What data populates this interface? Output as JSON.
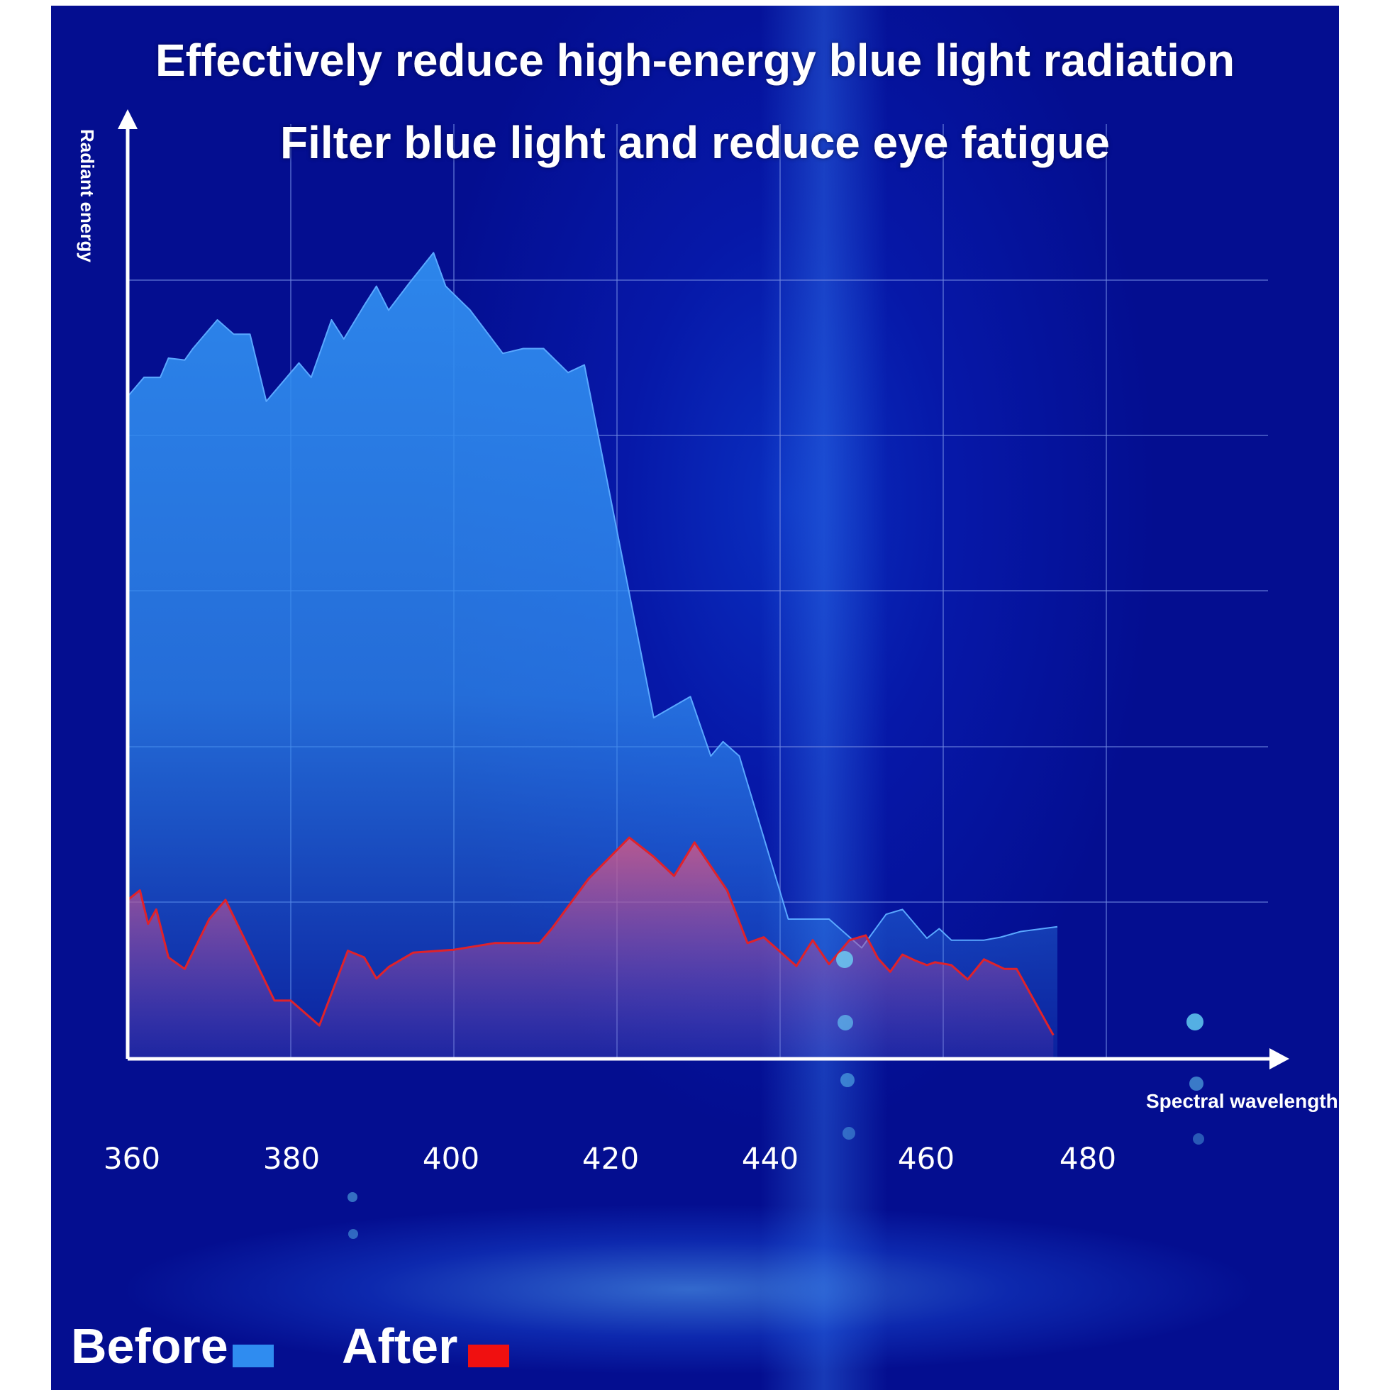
{
  "title": "Effectively reduce high-energy blue light radiation",
  "subtitle": "Filter blue light and reduce eye fatigue",
  "colors": {
    "before": "#2f8cf0",
    "after": "#f01010",
    "after_line": "#e0222a",
    "axis": "#ffffff",
    "grid": "#6f86e0"
  },
  "chart_data": {
    "type": "area",
    "title": "Effectively reduce high-energy blue light radiation",
    "subtitle": "Filter blue light and reduce eye fatigue",
    "xlabel": "Spectral wavelength",
    "ylabel": "Radiant energy",
    "x_ticks": [
      "360",
      "380",
      "400",
      "420",
      "440",
      "460",
      "480"
    ],
    "xlim": [
      360,
      492
    ],
    "ylim": [
      0,
      100
    ],
    "grid": true,
    "legend": "bottom-left",
    "series": [
      {
        "name": "Before",
        "color": "#2f8cf0",
        "points": [
          [
            360.0,
            69
          ],
          [
            362.0,
            71
          ],
          [
            364.0,
            71
          ],
          [
            365.0,
            73
          ],
          [
            367.0,
            72.8
          ],
          [
            368.0,
            74
          ],
          [
            371.0,
            77
          ],
          [
            373.0,
            75.5
          ],
          [
            375.0,
            75.5
          ],
          [
            377.0,
            68.5
          ],
          [
            380.0,
            71.5
          ],
          [
            381.0,
            72.5
          ],
          [
            382.5,
            71
          ],
          [
            385.0,
            77
          ],
          [
            386.5,
            75
          ],
          [
            389.0,
            78.5
          ],
          [
            390.5,
            80.5
          ],
          [
            392.0,
            78
          ],
          [
            394.5,
            80.8
          ],
          [
            397.5,
            84
          ],
          [
            399.0,
            80.5
          ],
          [
            402.0,
            78
          ],
          [
            406.0,
            73.5
          ],
          [
            408.5,
            74
          ],
          [
            411.0,
            74
          ],
          [
            414.0,
            71.5
          ],
          [
            416.0,
            72.3
          ],
          [
            424.5,
            35.5
          ],
          [
            429.0,
            37.7
          ],
          [
            431.5,
            31.5
          ],
          [
            433.0,
            33
          ],
          [
            435.0,
            31.5
          ],
          [
            441.0,
            14.5
          ],
          [
            444.0,
            14.5
          ],
          [
            446.0,
            14.5
          ],
          [
            450.0,
            11.5
          ],
          [
            453.0,
            15
          ],
          [
            455.0,
            15.5
          ],
          [
            458.0,
            12.5
          ],
          [
            459.5,
            13.5
          ],
          [
            461.0,
            12.3
          ],
          [
            465.0,
            12.3
          ],
          [
            467.0,
            12.6
          ],
          [
            469.5,
            13.2
          ],
          [
            474.0,
            13.7
          ]
        ]
      },
      {
        "name": "After",
        "color": "#e0222a",
        "points": [
          [
            360.0,
            16.5
          ],
          [
            361.5,
            17.5
          ],
          [
            362.5,
            14
          ],
          [
            363.5,
            15.5
          ],
          [
            365.0,
            10.5
          ],
          [
            367.0,
            9.3
          ],
          [
            370.0,
            14.5
          ],
          [
            372.0,
            16.5
          ],
          [
            378.0,
            6
          ],
          [
            380.0,
            6
          ],
          [
            383.5,
            3.4
          ],
          [
            387.0,
            11.2
          ],
          [
            389.0,
            10.5
          ],
          [
            390.5,
            8.3
          ],
          [
            392.0,
            9.5
          ],
          [
            395.0,
            11
          ],
          [
            400.0,
            11.3
          ],
          [
            405.0,
            12
          ],
          [
            410.5,
            12
          ],
          [
            412.0,
            13.5
          ],
          [
            416.5,
            18.7
          ],
          [
            421.5,
            23
          ],
          [
            424.5,
            21
          ],
          [
            427.0,
            19
          ],
          [
            429.5,
            22.5
          ],
          [
            433.5,
            17.5
          ],
          [
            436.0,
            12
          ],
          [
            438.0,
            12.6
          ],
          [
            442.0,
            9.6
          ],
          [
            444.0,
            12.3
          ],
          [
            446.0,
            9.8
          ],
          [
            448.5,
            12.3
          ],
          [
            450.5,
            12.8
          ],
          [
            452.0,
            10.4
          ],
          [
            453.5,
            9
          ],
          [
            455.0,
            10.8
          ],
          [
            456.5,
            10.2
          ],
          [
            458.0,
            9.7
          ],
          [
            459.0,
            10
          ],
          [
            461.0,
            9.7
          ],
          [
            463.0,
            8.2
          ],
          [
            465.0,
            10.3
          ],
          [
            467.5,
            9.3
          ],
          [
            469.0,
            9.3
          ],
          [
            473.5,
            2.4
          ]
        ]
      }
    ]
  },
  "legend": {
    "before_label": "Before",
    "after_label": "After"
  }
}
